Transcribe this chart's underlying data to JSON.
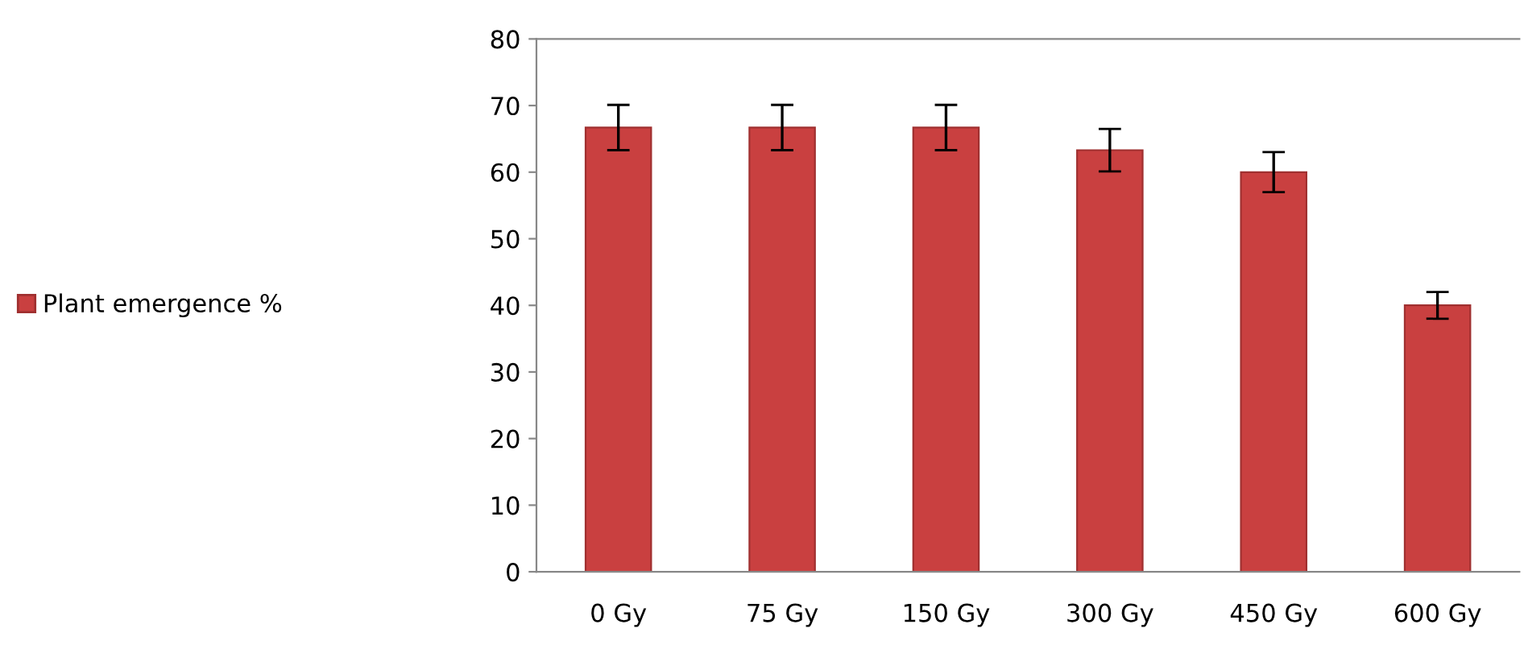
{
  "chart_data": {
    "type": "bar",
    "categories": [
      "0 Gy",
      "75 Gy",
      "150 Gy",
      "300 Gy",
      "450 Gy",
      "600 Gy"
    ],
    "series": [
      {
        "name": "Plant emergence %",
        "color": "#c94040",
        "values": [
          66.7,
          66.7,
          66.7,
          63.3,
          60,
          40
        ],
        "errors": [
          3.4,
          3.4,
          3.4,
          3.2,
          3,
          2
        ]
      }
    ],
    "ylim": [
      0,
      80
    ],
    "yticks": [
      0,
      10,
      20,
      30,
      40,
      50,
      60,
      70,
      80
    ],
    "grid": false,
    "legend": "left"
  }
}
